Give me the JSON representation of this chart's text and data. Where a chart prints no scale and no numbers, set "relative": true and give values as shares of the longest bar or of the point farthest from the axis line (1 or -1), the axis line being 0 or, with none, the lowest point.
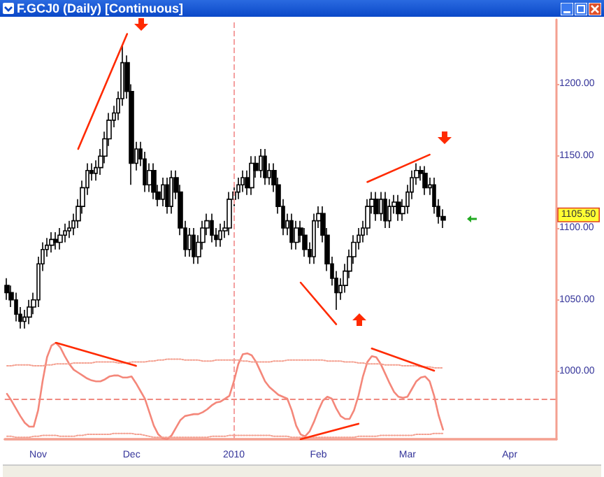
{
  "chart_data": [
    {
      "type": "candlestick",
      "title": "F.GCJ0 (Daily) [Continuous]",
      "color": "#000000",
      "marker": "none",
      "categories": [
        null,
        null,
        null,
        null,
        null,
        null,
        null,
        "Nov",
        null,
        null,
        null,
        null,
        null,
        null,
        null,
        null,
        null,
        null,
        null,
        null,
        null,
        null,
        null,
        null,
        null,
        null,
        null,
        null,
        "Dec",
        null,
        null,
        null,
        null,
        null,
        null,
        null,
        null,
        null,
        null,
        null,
        null,
        null,
        null,
        null,
        null,
        null,
        null,
        null,
        null,
        null,
        null,
        "2010",
        null,
        null,
        null,
        null,
        null,
        null,
        null,
        null,
        null,
        null,
        null,
        null,
        null,
        null,
        null,
        null,
        null,
        null,
        "Feb",
        null,
        null,
        null,
        null,
        null,
        null,
        null,
        null,
        null,
        null,
        null,
        null,
        null,
        null,
        null,
        null,
        null,
        null,
        null,
        "Mar",
        null,
        null,
        null,
        null,
        null,
        null,
        null,
        null,
        null,
        null,
        null,
        null,
        null,
        null,
        null,
        null,
        null,
        null,
        null,
        null,
        null,
        null,
        "Apr",
        null,
        null,
        null,
        null,
        null,
        null,
        null,
        null,
        null,
        null
      ],
      "ohlc": [
        [
          1060,
          1065,
          1050,
          1055
        ],
        [
          1055,
          1060,
          1045,
          1050
        ],
        [
          1050,
          1055,
          1035,
          1040
        ],
        [
          1040,
          1045,
          1030,
          1035
        ],
        [
          1035,
          1043,
          1030,
          1038
        ],
        [
          1038,
          1050,
          1033,
          1045
        ],
        [
          1045,
          1055,
          1040,
          1050
        ],
        [
          1050,
          1080,
          1045,
          1075
        ],
        [
          1075,
          1090,
          1070,
          1085
        ],
        [
          1085,
          1093,
          1080,
          1088
        ],
        [
          1088,
          1097,
          1083,
          1092
        ],
        [
          1092,
          1097,
          1085,
          1090
        ],
        [
          1090,
          1100,
          1085,
          1095
        ],
        [
          1095,
          1103,
          1090,
          1098
        ],
        [
          1098,
          1105,
          1093,
          1100
        ],
        [
          1100,
          1110,
          1095,
          1105
        ],
        [
          1105,
          1120,
          1100,
          1115
        ],
        [
          1115,
          1133,
          1110,
          1128
        ],
        [
          1128,
          1145,
          1123,
          1140
        ],
        [
          1140,
          1145,
          1133,
          1138
        ],
        [
          1138,
          1147,
          1133,
          1142
        ],
        [
          1142,
          1155,
          1137,
          1150
        ],
        [
          1150,
          1167,
          1145,
          1162
        ],
        [
          1162,
          1180,
          1157,
          1175
        ],
        [
          1175,
          1185,
          1170,
          1180
        ],
        [
          1180,
          1195,
          1175,
          1190
        ],
        [
          1190,
          1227,
          1185,
          1215
        ],
        [
          1215,
          1220,
          1190,
          1195
        ],
        [
          1195,
          1200,
          1130,
          1145
        ],
        [
          1145,
          1160,
          1140,
          1155
        ],
        [
          1155,
          1160,
          1143,
          1148
        ],
        [
          1148,
          1153,
          1125,
          1130
        ],
        [
          1130,
          1145,
          1125,
          1140
        ],
        [
          1140,
          1145,
          1120,
          1125
        ],
        [
          1125,
          1130,
          1115,
          1120
        ],
        [
          1120,
          1135,
          1115,
          1130
        ],
        [
          1130,
          1135,
          1110,
          1115
        ],
        [
          1115,
          1140,
          1110,
          1135
        ],
        [
          1135,
          1140,
          1120,
          1125
        ],
        [
          1125,
          1130,
          1095,
          1100
        ],
        [
          1100,
          1105,
          1080,
          1085
        ],
        [
          1085,
          1100,
          1080,
          1095
        ],
        [
          1095,
          1100,
          1075,
          1080
        ],
        [
          1080,
          1095,
          1075,
          1090
        ],
        [
          1090,
          1105,
          1085,
          1100
        ],
        [
          1100,
          1110,
          1095,
          1105
        ],
        [
          1105,
          1110,
          1090,
          1095
        ],
        [
          1095,
          1100,
          1087,
          1092
        ],
        [
          1092,
          1103,
          1087,
          1098
        ],
        [
          1098,
          1105,
          1093,
          1100
        ],
        [
          1100,
          1125,
          1095,
          1120
        ],
        [
          1120,
          1130,
          1115,
          1125
        ],
        [
          1125,
          1135,
          1120,
          1130
        ],
        [
          1130,
          1140,
          1125,
          1135
        ],
        [
          1135,
          1140,
          1123,
          1128
        ],
        [
          1128,
          1150,
          1123,
          1145
        ],
        [
          1145,
          1150,
          1135,
          1140
        ],
        [
          1140,
          1155,
          1135,
          1150
        ],
        [
          1150,
          1155,
          1130,
          1135
        ],
        [
          1135,
          1145,
          1130,
          1140
        ],
        [
          1140,
          1145,
          1125,
          1130
        ],
        [
          1130,
          1135,
          1110,
          1115
        ],
        [
          1115,
          1120,
          1095,
          1100
        ],
        [
          1100,
          1110,
          1095,
          1105
        ],
        [
          1105,
          1110,
          1085,
          1090
        ],
        [
          1090,
          1105,
          1085,
          1100
        ],
        [
          1100,
          1105,
          1090,
          1095
        ],
        [
          1095,
          1100,
          1080,
          1085
        ],
        [
          1085,
          1090,
          1075,
          1080
        ],
        [
          1080,
          1110,
          1075,
          1105
        ],
        [
          1105,
          1115,
          1100,
          1110
        ],
        [
          1110,
          1115,
          1090,
          1095
        ],
        [
          1095,
          1100,
          1070,
          1075
        ],
        [
          1075,
          1080,
          1060,
          1065
        ],
        [
          1065,
          1070,
          1043,
          1055
        ],
        [
          1055,
          1065,
          1050,
          1060
        ],
        [
          1060,
          1075,
          1055,
          1070
        ],
        [
          1070,
          1085,
          1065,
          1080
        ],
        [
          1080,
          1095,
          1075,
          1090
        ],
        [
          1090,
          1100,
          1085,
          1095
        ],
        [
          1095,
          1105,
          1090,
          1100
        ],
        [
          1100,
          1120,
          1095,
          1115
        ],
        [
          1115,
          1125,
          1110,
          1120
        ],
        [
          1120,
          1125,
          1105,
          1110
        ],
        [
          1110,
          1125,
          1105,
          1120
        ],
        [
          1120,
          1125,
          1100,
          1105
        ],
        [
          1105,
          1120,
          1100,
          1115
        ],
        [
          1115,
          1123,
          1110,
          1118
        ],
        [
          1118,
          1123,
          1105,
          1110
        ],
        [
          1110,
          1120,
          1105,
          1115
        ],
        [
          1115,
          1130,
          1110,
          1125
        ],
        [
          1125,
          1140,
          1120,
          1135
        ],
        [
          1135,
          1145,
          1130,
          1140
        ],
        [
          1140,
          1143,
          1133,
          1138
        ],
        [
          1138,
          1143,
          1123,
          1128
        ],
        [
          1128,
          1135,
          1123,
          1130
        ],
        [
          1130,
          1135,
          1110,
          1115
        ],
        [
          1115,
          1120,
          1103,
          1108
        ],
        [
          1108,
          1113,
          1100,
          1105.5
        ],
        null,
        null,
        null,
        null,
        null,
        null,
        null,
        null,
        null,
        null,
        null,
        null,
        null,
        null,
        null,
        null,
        null,
        null,
        null,
        null,
        null,
        null,
        null,
        null,
        null
      ],
      "series": [
        {
          "type": "line",
          "color": "#ff2a00",
          "values": [
            null,
            null,
            null,
            null,
            null,
            null,
            null,
            null,
            null,
            null,
            null,
            null,
            null,
            null,
            null,
            null,
            1155,
            null,
            null,
            null,
            null,
            null,
            null,
            null,
            null,
            null,
            null,
            1235,
            null,
            null,
            null,
            null,
            null,
            null,
            null,
            null,
            null,
            null,
            null,
            null,
            null,
            null,
            null,
            null,
            null,
            null,
            null,
            null,
            null,
            null,
            null,
            null,
            null,
            null,
            null,
            null,
            null,
            null,
            null,
            null,
            null,
            null,
            null,
            null,
            null,
            null,
            null,
            null,
            null,
            null,
            null,
            null,
            null,
            null,
            null,
            null,
            null,
            null,
            null,
            null,
            null,
            null,
            null,
            null,
            null,
            null,
            null,
            null,
            null,
            null,
            null,
            null,
            null,
            null,
            null,
            null,
            null,
            null,
            null,
            null,
            null,
            null,
            null,
            null,
            null,
            null,
            null,
            null,
            null,
            null,
            null,
            null,
            null,
            null,
            null,
            null,
            null,
            null,
            null,
            null,
            null,
            null,
            null,
            null
          ]
        },
        {
          "type": "line",
          "color": "#ff2a00",
          "values": [
            null,
            null,
            null,
            null,
            null,
            null,
            null,
            null,
            null,
            null,
            null,
            null,
            null,
            null,
            null,
            null,
            null,
            null,
            null,
            null,
            null,
            null,
            null,
            null,
            null,
            null,
            null,
            null,
            null,
            null,
            null,
            null,
            null,
            null,
            null,
            null,
            null,
            null,
            null,
            null,
            null,
            null,
            null,
            null,
            null,
            null,
            null,
            null,
            null,
            null,
            null,
            null,
            null,
            null,
            null,
            null,
            null,
            null,
            null,
            null,
            null,
            null,
            null,
            null,
            null,
            null,
            1062,
            null,
            null,
            null,
            null,
            null,
            null,
            null,
            1033,
            null,
            null,
            null,
            null,
            null,
            null,
            null,
            null,
            null,
            null,
            null,
            null,
            null,
            null,
            null,
            null,
            null,
            null,
            null,
            null,
            null,
            null,
            null,
            null,
            null,
            null,
            null,
            null,
            null,
            null,
            null,
            null,
            null,
            null,
            null,
            null,
            null,
            null,
            null,
            null,
            null,
            null,
            null,
            null,
            null,
            null,
            null,
            null,
            null
          ]
        },
        {
          "type": "line",
          "color": "#ff2a00",
          "values": [
            null,
            null,
            null,
            null,
            null,
            null,
            null,
            null,
            null,
            null,
            null,
            null,
            null,
            null,
            null,
            null,
            null,
            null,
            null,
            null,
            null,
            null,
            null,
            null,
            null,
            null,
            null,
            null,
            null,
            null,
            null,
            null,
            null,
            null,
            null,
            null,
            null,
            null,
            null,
            null,
            null,
            null,
            null,
            null,
            null,
            null,
            null,
            null,
            null,
            null,
            null,
            null,
            null,
            null,
            null,
            null,
            null,
            null,
            null,
            null,
            null,
            null,
            null,
            null,
            null,
            null,
            null,
            null,
            null,
            null,
            null,
            null,
            null,
            null,
            null,
            null,
            null,
            null,
            null,
            null,
            null,
            1132,
            null,
            null,
            null,
            null,
            null,
            null,
            null,
            null,
            null,
            null,
            null,
            null,
            null,
            1151,
            null,
            null,
            null,
            null,
            null,
            null,
            null,
            null,
            null,
            null,
            null,
            null,
            null,
            null,
            null,
            null,
            null,
            null,
            null,
            null,
            null,
            null,
            null,
            null,
            null,
            null,
            null,
            null
          ]
        }
      ],
      "ylim": [
        953,
        1245
      ],
      "yticks": [
        {
          "value": 1000,
          "label": "1000.00"
        },
        {
          "value": 1050,
          "label": "1050.00"
        },
        {
          "value": 1100,
          "label": "1100.00"
        },
        {
          "value": 1150,
          "label": "1150.00"
        },
        {
          "value": 1200,
          "label": "1200.00"
        }
      ],
      "ref_lines": [
        {
          "axis": "x",
          "value": "2010",
          "color": "#f4a0a0",
          "line_style": "dashed"
        }
      ],
      "annotations": [
        "1105.50"
      ]
    },
    {
      "type": "line",
      "relative": true,
      "marker": "none",
      "categories": [
        null,
        null,
        null,
        null,
        null,
        null,
        null,
        null,
        null,
        null,
        null,
        null,
        null,
        null,
        null,
        null,
        null,
        null,
        null,
        null,
        null,
        null,
        null,
        null,
        null,
        null,
        null,
        null,
        null,
        null,
        null,
        null,
        null,
        null,
        null,
        null,
        null,
        null,
        null,
        null,
        null,
        null,
        null,
        null,
        null,
        null,
        null,
        null,
        null,
        null,
        null,
        null,
        null,
        null,
        null,
        null,
        null,
        null,
        null,
        null,
        null,
        null,
        null,
        null,
        null,
        null,
        null,
        null,
        null,
        null,
        null,
        null,
        null,
        null,
        null,
        null,
        null,
        null,
        null,
        null,
        null,
        null,
        null,
        null,
        null,
        null,
        null,
        null,
        null,
        null,
        null,
        null,
        null,
        null,
        null,
        null,
        null,
        null,
        null,
        null,
        null,
        null,
        null,
        null,
        null,
        null,
        null,
        null,
        null,
        null,
        null,
        null,
        null,
        null,
        null,
        null,
        null,
        null,
        null,
        null,
        null,
        null,
        null,
        null
      ],
      "series": [
        {
          "color": "#f4877a",
          "line_style": "solid",
          "values": [
            0.47,
            0.4,
            0.32,
            0.24,
            0.17,
            0.13,
            0.13,
            0.3,
            0.6,
            0.85,
            0.97,
            1.0,
            0.95,
            0.86,
            0.78,
            0.72,
            0.69,
            0.66,
            0.63,
            0.61,
            0.6,
            0.6,
            0.62,
            0.65,
            0.66,
            0.66,
            0.64,
            0.64,
            0.65,
            0.58,
            0.5,
            0.42,
            0.28,
            0.14,
            0.05,
            0.01,
            0.0,
            0.04,
            0.12,
            0.2,
            0.24,
            0.25,
            0.26,
            0.26,
            0.28,
            0.31,
            0.35,
            0.38,
            0.39,
            0.42,
            0.45,
            0.6,
            0.78,
            0.88,
            0.89,
            0.87,
            0.8,
            0.7,
            0.6,
            0.54,
            0.5,
            0.46,
            0.44,
            0.42,
            0.3,
            0.14,
            0.05,
            0.03,
            0.08,
            0.18,
            0.3,
            0.4,
            0.44,
            0.42,
            0.32,
            0.24,
            0.21,
            0.21,
            0.3,
            0.45,
            0.65,
            0.8,
            0.86,
            0.85,
            0.78,
            0.68,
            0.58,
            0.49,
            0.44,
            0.43,
            0.44,
            0.52,
            0.6,
            0.64,
            0.65,
            0.6,
            0.45,
            0.25,
            0.1,
            null,
            null,
            null,
            null,
            null,
            null,
            null,
            null,
            null,
            null,
            null,
            null,
            null,
            null,
            null,
            null,
            null,
            null,
            null,
            null,
            null,
            null,
            null,
            null,
            null
          ]
        },
        {
          "color": "#f4a090",
          "line_style": "dotted",
          "values": [
            0.76,
            0.76,
            0.77,
            0.77,
            0.77,
            0.77,
            0.76,
            0.76,
            0.76,
            0.77,
            0.77,
            0.78,
            0.78,
            0.78,
            0.78,
            0.79,
            0.79,
            0.79,
            0.79,
            0.79,
            0.8,
            0.8,
            0.8,
            0.8,
            0.8,
            0.79,
            0.79,
            0.79,
            0.8,
            0.8,
            0.8,
            0.8,
            0.81,
            0.81,
            0.82,
            0.82,
            0.83,
            0.83,
            0.83,
            0.83,
            0.82,
            0.82,
            0.82,
            0.82,
            0.81,
            0.81,
            0.81,
            0.82,
            0.82,
            0.82,
            0.82,
            0.82,
            0.82,
            0.81,
            0.81,
            0.8,
            0.8,
            0.8,
            0.8,
            0.8,
            0.81,
            0.81,
            0.81,
            0.82,
            0.82,
            0.82,
            0.82,
            0.82,
            0.82,
            0.82,
            0.82,
            0.82,
            0.81,
            0.81,
            0.81,
            0.81,
            0.8,
            0.8,
            0.8,
            0.79,
            0.79,
            0.78,
            0.78,
            0.78,
            0.78,
            0.77,
            0.77,
            0.77,
            0.77,
            0.76,
            0.76,
            0.76,
            0.76,
            0.75,
            0.75,
            0.75,
            0.74,
            0.74,
            0.74,
            null,
            null,
            null,
            null,
            null,
            null,
            null,
            null,
            null,
            null,
            null,
            null,
            null,
            null,
            null,
            null,
            null,
            null,
            null,
            null,
            null,
            null,
            null,
            null,
            null
          ]
        },
        {
          "color": "#f4a090",
          "line_style": "dotted",
          "values": [
            0.03,
            0.03,
            0.02,
            0.02,
            0.02,
            0.02,
            0.03,
            0.03,
            0.04,
            0.04,
            0.04,
            0.04,
            0.03,
            0.03,
            0.03,
            0.03,
            0.04,
            0.04,
            0.05,
            0.05,
            0.05,
            0.05,
            0.05,
            0.05,
            0.06,
            0.06,
            0.06,
            0.06,
            0.06,
            0.05,
            0.05,
            0.04,
            0.03,
            0.02,
            0.02,
            0.02,
            0.02,
            0.02,
            0.02,
            0.02,
            0.02,
            0.02,
            0.02,
            0.02,
            0.02,
            0.02,
            0.03,
            0.03,
            0.03,
            0.03,
            0.04,
            0.04,
            0.04,
            0.04,
            0.04,
            0.04,
            0.04,
            0.04,
            0.04,
            0.04,
            0.03,
            0.03,
            0.03,
            0.03,
            0.02,
            0.02,
            0.02,
            0.02,
            0.02,
            0.02,
            0.02,
            0.02,
            0.02,
            0.02,
            0.02,
            0.02,
            0.02,
            0.02,
            0.02,
            0.03,
            0.03,
            0.03,
            0.03,
            0.03,
            0.04,
            0.04,
            0.04,
            0.04,
            0.04,
            0.04,
            0.04,
            0.04,
            0.05,
            0.05,
            0.05,
            0.05,
            0.06,
            0.06,
            0.06,
            null,
            null,
            null,
            null,
            null,
            null,
            null,
            null,
            null,
            null,
            null,
            null,
            null,
            null,
            null,
            null,
            null,
            null,
            null,
            null,
            null,
            null,
            null,
            null,
            null
          ]
        },
        {
          "color": "#ff2a00",
          "line_style": "solid",
          "values": [
            null,
            null,
            null,
            null,
            null,
            null,
            null,
            null,
            null,
            null,
            null,
            1.0,
            null,
            null,
            null,
            null,
            null,
            null,
            null,
            null,
            null,
            null,
            null,
            null,
            null,
            null,
            null,
            null,
            null,
            0.76,
            null,
            null,
            null,
            null,
            null,
            null,
            null,
            null,
            null,
            null,
            null,
            null,
            null,
            null,
            null,
            null,
            null,
            null,
            null,
            null,
            null,
            null,
            null,
            null,
            null,
            null,
            null,
            null,
            null,
            null,
            null,
            null,
            null,
            null,
            null,
            null,
            null,
            null,
            null,
            null,
            null,
            null,
            null,
            null,
            null,
            null,
            null,
            null,
            null,
            null,
            null,
            null,
            null,
            null,
            null,
            null,
            null,
            null,
            null,
            null,
            null,
            null,
            null,
            null,
            null,
            null,
            null,
            null,
            null,
            null,
            null,
            null,
            null,
            null,
            null,
            null,
            null,
            null,
            null,
            null,
            null,
            null,
            null,
            null,
            null,
            null,
            null,
            null,
            null,
            null,
            null,
            null,
            null,
            null
          ]
        },
        {
          "color": "#ff2a00",
          "line_style": "solid",
          "values": [
            null,
            null,
            null,
            null,
            null,
            null,
            null,
            null,
            null,
            null,
            null,
            null,
            null,
            null,
            null,
            null,
            null,
            null,
            null,
            null,
            null,
            null,
            null,
            null,
            null,
            null,
            null,
            null,
            null,
            null,
            null,
            null,
            null,
            null,
            null,
            null,
            null,
            null,
            null,
            null,
            null,
            null,
            null,
            null,
            null,
            null,
            null,
            null,
            null,
            null,
            null,
            null,
            null,
            null,
            null,
            null,
            null,
            null,
            null,
            null,
            null,
            null,
            null,
            null,
            null,
            null,
            0.0,
            null,
            null,
            null,
            null,
            null,
            null,
            null,
            null,
            null,
            null,
            null,
            null,
            0.16,
            null,
            null,
            null,
            null,
            null,
            null,
            null,
            null,
            null,
            null,
            null,
            null,
            null,
            null,
            null,
            null,
            null,
            null,
            null,
            null,
            null,
            null,
            null,
            null,
            null,
            null,
            null,
            null,
            null,
            null,
            null,
            null,
            null,
            null,
            null,
            null,
            null,
            null,
            null,
            null,
            null,
            null,
            null,
            null
          ]
        },
        {
          "color": "#ff2a00",
          "line_style": "solid",
          "values": [
            null,
            null,
            null,
            null,
            null,
            null,
            null,
            null,
            null,
            null,
            null,
            null,
            null,
            null,
            null,
            null,
            null,
            null,
            null,
            null,
            null,
            null,
            null,
            null,
            null,
            null,
            null,
            null,
            null,
            null,
            null,
            null,
            null,
            null,
            null,
            null,
            null,
            null,
            null,
            null,
            null,
            null,
            null,
            null,
            null,
            null,
            null,
            null,
            null,
            null,
            null,
            null,
            null,
            null,
            null,
            null,
            null,
            null,
            null,
            null,
            null,
            null,
            null,
            null,
            null,
            null,
            null,
            null,
            null,
            null,
            null,
            null,
            null,
            null,
            null,
            null,
            null,
            null,
            null,
            null,
            null,
            null,
            0.94,
            null,
            null,
            null,
            null,
            null,
            null,
            null,
            null,
            null,
            null,
            null,
            null,
            null,
            0.71,
            null,
            null,
            null,
            null,
            null,
            null,
            null,
            null,
            null,
            null,
            null,
            null,
            null,
            null,
            null,
            null,
            null,
            null,
            null,
            null,
            null,
            null,
            null,
            null,
            null,
            null,
            null
          ]
        }
      ],
      "ref_lines": [
        {
          "axis": "y",
          "value": 0.42,
          "color": "#f08a80",
          "line_style": "dashed"
        }
      ]
    }
  ]
}
